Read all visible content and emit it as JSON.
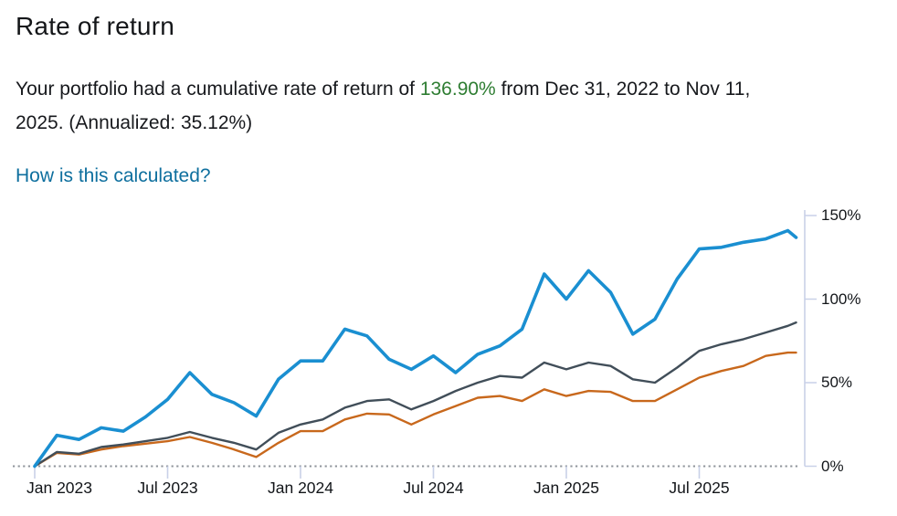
{
  "header": {
    "title": "Rate of return"
  },
  "summary": {
    "prefix": "Your portfolio had a cumulative rate of return of ",
    "highlight": "136.90%",
    "highlight_color": "#2e7d32",
    "suffix_line1": " from Dec 31, 2022 to Nov 11,",
    "line2": "2025. (Annualized: 35.12%)"
  },
  "link": {
    "label": "How is this calculated?",
    "color": "#0e6f9e"
  },
  "chart_data": {
    "type": "line",
    "title": "",
    "xlabel": "",
    "ylabel": "",
    "x_range": [
      "Dec 31, 2022",
      "Nov 11, 2025"
    ],
    "x_unit": "month",
    "x_tick_labels": [
      "Jan 2023",
      "Jul 2023",
      "Jan 2024",
      "Jul 2024",
      "Jan 2025",
      "Jul 2025"
    ],
    "x_tick_month_index": [
      0,
      6,
      12,
      18,
      24,
      30
    ],
    "y_tick_labels": [
      "0%",
      "50%",
      "100%",
      "150%"
    ],
    "y_tick_values": [
      0,
      50,
      100,
      150
    ],
    "ylim": [
      0,
      153
    ],
    "grid": "off",
    "legend": "none",
    "axis_color": "#c9d1e8",
    "baseline": {
      "value": 0,
      "style": "dotted",
      "color": "#8f949b"
    },
    "last_point_month_offset": 34.37,
    "series": [
      {
        "name": "blue-line",
        "color": "#1a8fd1",
        "stroke_width": 3.6,
        "values": [
          0,
          18.5,
          16,
          23,
          21,
          29.5,
          40,
          56,
          43,
          38,
          30,
          52,
          63,
          63,
          82,
          78,
          64,
          58,
          66,
          56,
          67,
          72,
          82,
          115,
          100,
          117,
          104,
          79,
          88,
          112,
          130,
          131,
          134,
          136,
          141,
          136.9
        ]
      },
      {
        "name": "gray-line",
        "color": "#414e59",
        "stroke_width": 2.4,
        "values": [
          0,
          8.5,
          7.5,
          11.5,
          13,
          15,
          17,
          20.5,
          17,
          14,
          10,
          20,
          25,
          28,
          35,
          39,
          40,
          34,
          39,
          45,
          50,
          54,
          53,
          62,
          58,
          62,
          60,
          52,
          50,
          59,
          69,
          73,
          76,
          80,
          84,
          86
        ]
      },
      {
        "name": "orange-line",
        "color": "#c8681c",
        "stroke_width": 2.4,
        "values": [
          0,
          8,
          7,
          10,
          12,
          13.5,
          15,
          17.5,
          14,
          10,
          5.5,
          14,
          21,
          21,
          28,
          31.5,
          31,
          25,
          31,
          36,
          41,
          42,
          39,
          46,
          42,
          45,
          44.5,
          39,
          39,
          46,
          53,
          57,
          60,
          66,
          68,
          68
        ]
      }
    ]
  }
}
